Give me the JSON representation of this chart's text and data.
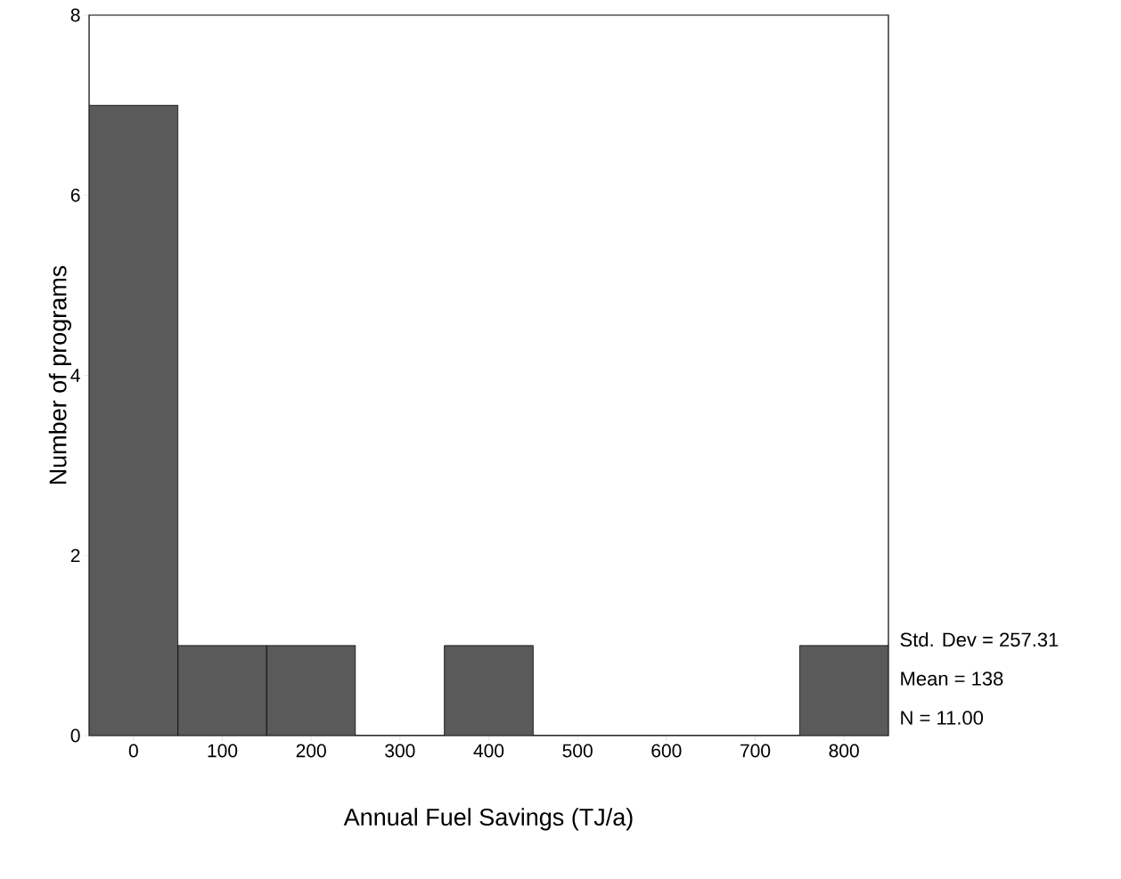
{
  "chart_data": {
    "type": "histogram",
    "xlabel": "Annual Fuel Savings (TJ/a)",
    "ylabel": "Number of programs",
    "bins": [
      -50,
      50,
      150,
      250,
      350,
      450,
      550,
      650,
      750,
      850
    ],
    "values": [
      7,
      1,
      1,
      0,
      1,
      0,
      0,
      0,
      1
    ],
    "color": "#5a5a5a",
    "xlim": [
      -50,
      850
    ],
    "ylim": [
      0,
      8
    ],
    "xticks": [
      0,
      100,
      200,
      300,
      400,
      500,
      600,
      700,
      800
    ],
    "yticks": [
      0,
      2,
      4,
      6,
      8
    ],
    "annotations": [
      "Std. Dev = 257.31",
      "Mean = 138",
      "N = 11.00"
    ]
  }
}
